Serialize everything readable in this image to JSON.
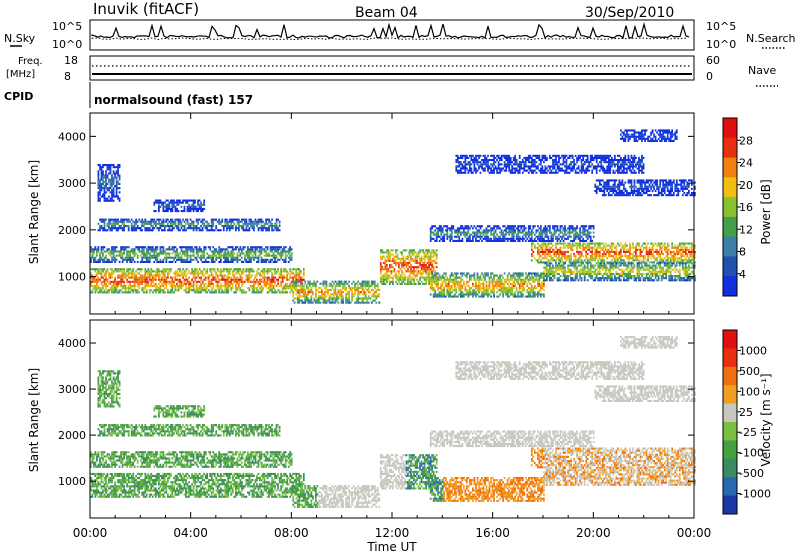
{
  "header": {
    "station": "Inuvik (fitACF)",
    "beam": "Beam 04",
    "date": "30/Sep/2010"
  },
  "strip_labels": {
    "nsky": "N.Sky",
    "nsky_hi": "10^5",
    "nsky_lo": "10^0",
    "nsearch": "N.Search",
    "nsearch_hi": "10^5",
    "nsearch_lo": "10^0",
    "freq_1": "Freq.",
    "freq_2": "[MHz]",
    "freq_hi": "18",
    "freq_lo": "8",
    "nave": "Nave",
    "nave_hi": "60",
    "nave_lo": "0",
    "cpid": "CPID",
    "cpid_text": "normalsound (fast) 157"
  },
  "chart_data": [
    {
      "type": "heatmap",
      "quantity": "Power",
      "ylabel": "Slant Range [km]",
      "yticks": [
        "1000",
        "2000",
        "3000",
        "4000"
      ],
      "ylim": [
        200,
        4500
      ],
      "colorbar_label": "Power [dB]",
      "colorbar_ticks": [
        "4",
        "8",
        "12",
        "16",
        "20",
        "24",
        "28"
      ],
      "colorbar_range": [
        0,
        32
      ],
      "colors": [
        "#1030e0",
        "#2050b0",
        "#3c7ea8",
        "#44a048",
        "#88c030",
        "#f0c010",
        "#f08010",
        "#e83010",
        "#e01010"
      ],
      "xlim_hours": [
        0,
        24
      ]
    },
    {
      "type": "heatmap",
      "quantity": "Velocity",
      "ylabel": "Slant Range [km]",
      "yticks": [
        "1000",
        "2000",
        "3000",
        "4000"
      ],
      "ylim": [
        200,
        4500
      ],
      "colorbar_label": "Velocity [m s⁻¹]",
      "colorbar_ticks": [
        "1000",
        "500",
        "100",
        "25",
        "-25",
        "-100",
        "-500",
        "-1000"
      ],
      "colors": [
        "#1a3aa8",
        "#2868b0",
        "#3c8a60",
        "#44a040",
        "#78c040",
        "#c8c8c0",
        "#f0a020",
        "#f07010",
        "#e83010",
        "#e01010"
      ],
      "xlim_hours": [
        0,
        24
      ]
    }
  ],
  "xaxis": {
    "ticks": [
      "00:00",
      "04:00",
      "08:00",
      "12:00",
      "16:00",
      "20:00",
      "00:00"
    ],
    "label": "Time UT"
  }
}
